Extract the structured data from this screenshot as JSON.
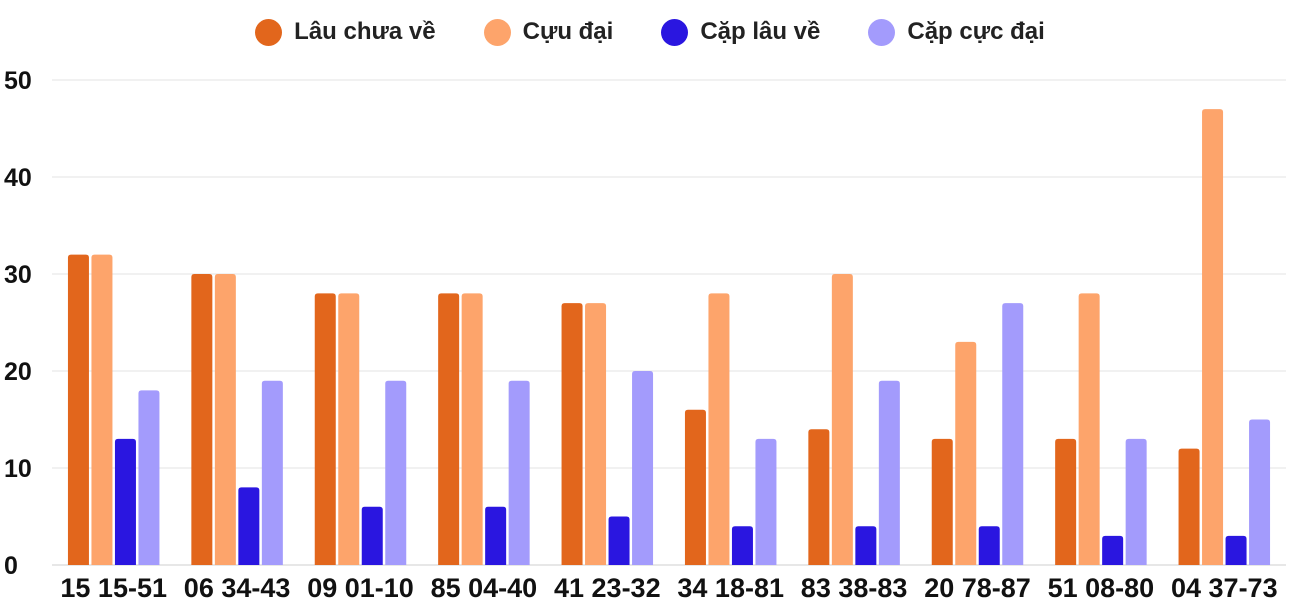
{
  "chart_data": {
    "type": "bar",
    "categories": [
      "15 15-51",
      "06 34-43",
      "09 01-10",
      "85 04-40",
      "41 23-32",
      "34 18-81",
      "83 38-83",
      "20 78-87",
      "51 08-80",
      "04 37-73"
    ],
    "series": [
      {
        "name": "Lâu chưa về",
        "color": "#e2661c",
        "values": [
          32,
          30,
          28,
          28,
          27,
          16,
          14,
          13,
          13,
          12
        ]
      },
      {
        "name": "Cựu đại",
        "color": "#fda46b",
        "values": [
          32,
          30,
          28,
          28,
          27,
          28,
          30,
          23,
          28,
          47
        ]
      },
      {
        "name": "Cặp lâu về",
        "color": "#2a16e0",
        "values": [
          13,
          8,
          6,
          6,
          5,
          4,
          4,
          4,
          3,
          3
        ]
      },
      {
        "name": "Cặp cực đại",
        "color": "#a39bfc",
        "values": [
          18,
          19,
          19,
          19,
          20,
          13,
          19,
          27,
          13,
          15
        ]
      }
    ],
    "y_ticks": [
      "0",
      "10",
      "20",
      "30",
      "40",
      "50"
    ],
    "ylim": [
      0,
      50
    ],
    "grid": true,
    "legend_position": "top-center"
  }
}
